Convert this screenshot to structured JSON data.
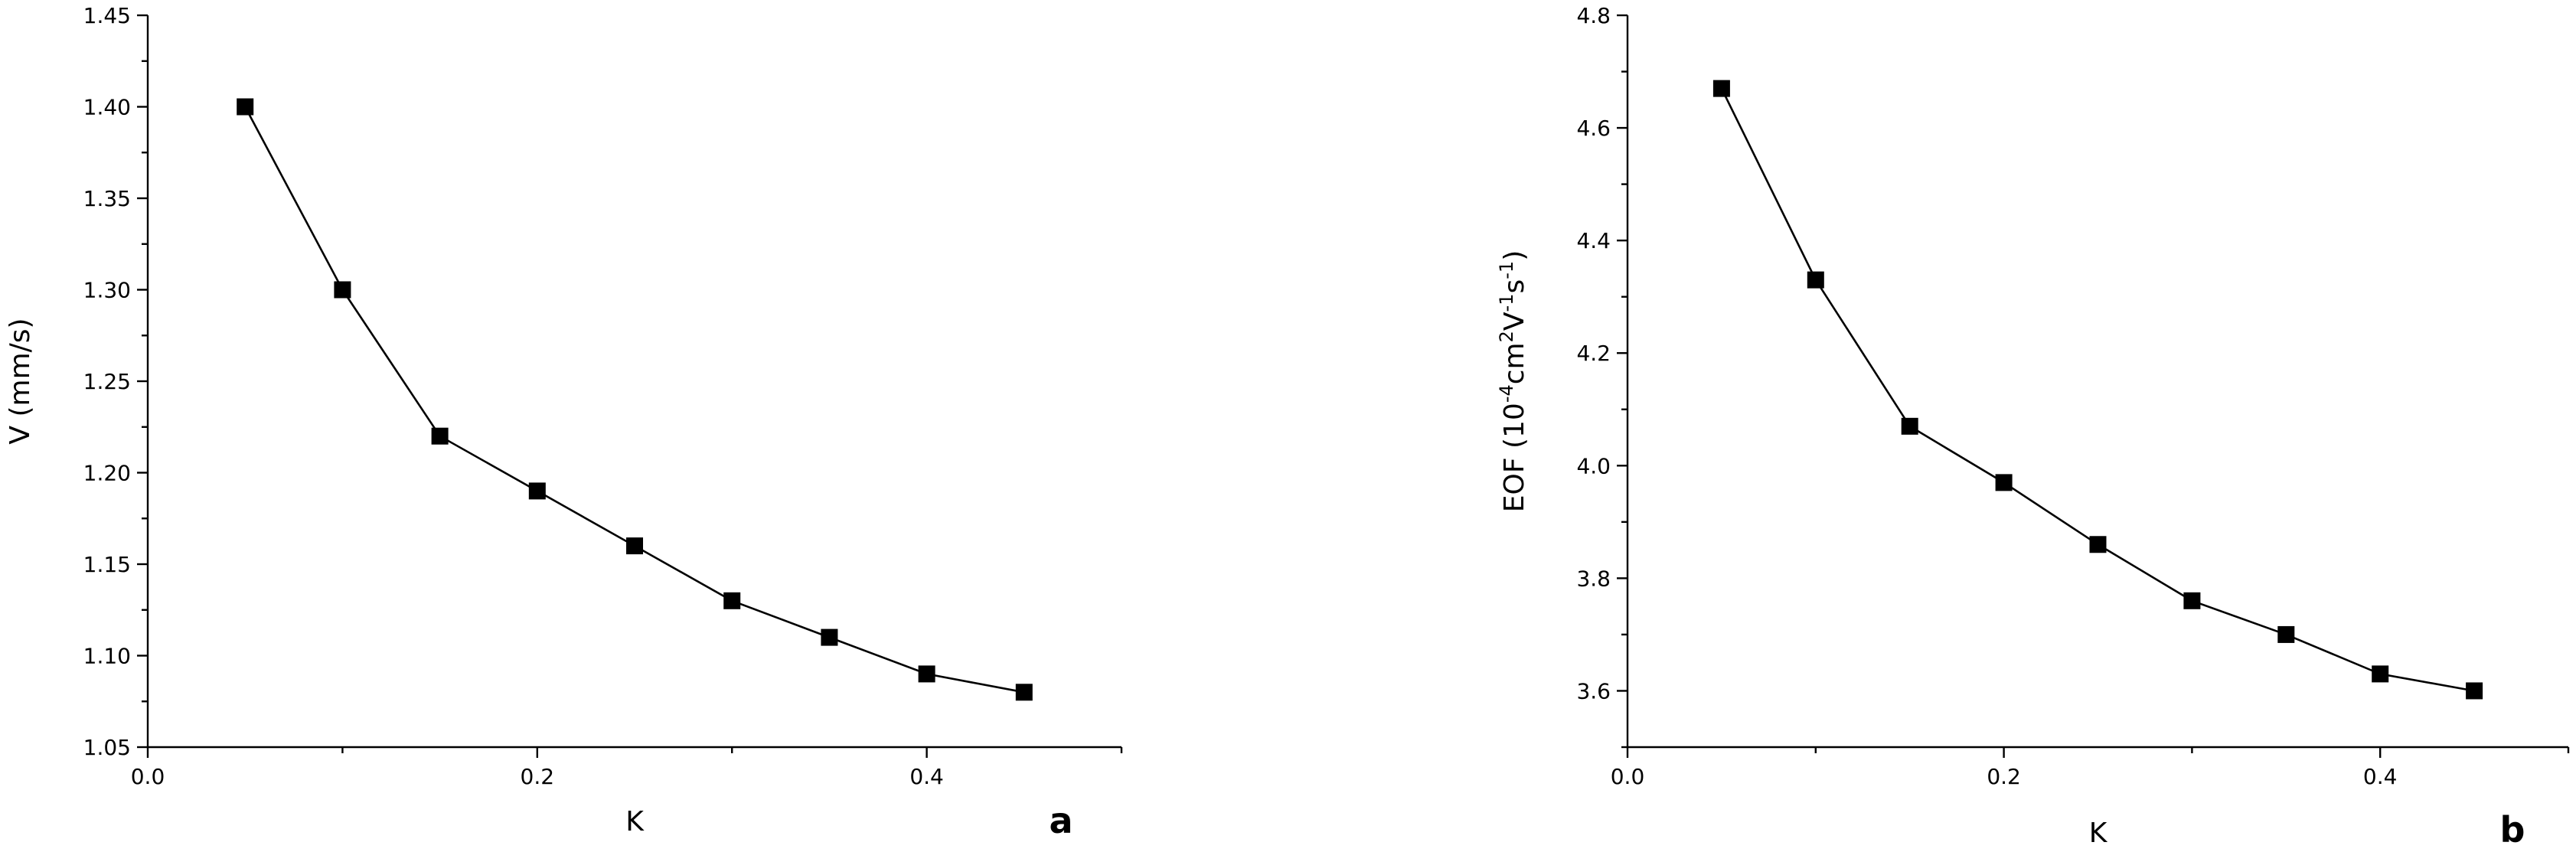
{
  "chart_data": [
    {
      "type": "line",
      "panel": "a",
      "xlabel": "K",
      "ylabel": "V (mm/s)",
      "xlim": [
        0.0,
        0.5
      ],
      "ylim": [
        1.05,
        1.45
      ],
      "xticks": [
        0.0,
        0.2,
        0.4
      ],
      "xtick_labels": [
        "0.0",
        "0.2",
        "0.4"
      ],
      "yticks": [
        1.05,
        1.1,
        1.15,
        1.2,
        1.25,
        1.3,
        1.35,
        1.4,
        1.45
      ],
      "ytick_labels": [
        "1.05",
        "1.10",
        "1.15",
        "1.20",
        "1.25",
        "1.30",
        "1.35",
        "1.40",
        "1.45"
      ],
      "grid": false,
      "x": [
        0.05,
        0.1,
        0.15,
        0.2,
        0.25,
        0.3,
        0.35,
        0.4,
        0.45
      ],
      "y": [
        1.4,
        1.3,
        1.22,
        1.19,
        1.16,
        1.13,
        1.11,
        1.09,
        1.08
      ]
    },
    {
      "type": "line",
      "panel": "b",
      "xlabel": "K",
      "ylabel": "EOF (10⁻⁴cm²V⁻¹s⁻¹)",
      "ylabel_parts": [
        "EOF (10",
        "-4",
        "cm",
        "2",
        "V",
        "-1",
        "s",
        "-1",
        ")"
      ],
      "xlim": [
        0.0,
        0.5
      ],
      "ylim": [
        3.5,
        4.8
      ],
      "xticks": [
        0.0,
        0.2,
        0.4
      ],
      "xtick_labels": [
        "0.0",
        "0.2",
        "0.4"
      ],
      "yticks": [
        3.6,
        3.8,
        4.0,
        4.2,
        4.4,
        4.6,
        4.8
      ],
      "ytick_labels": [
        "3.6",
        "3.8",
        "4.0",
        "4.2",
        "4.4",
        "4.6",
        "4.8"
      ],
      "grid": false,
      "x": [
        0.05,
        0.1,
        0.15,
        0.2,
        0.25,
        0.3,
        0.35,
        0.4,
        0.45
      ],
      "y": [
        4.67,
        4.33,
        4.07,
        3.97,
        3.86,
        3.76,
        3.7,
        3.63,
        3.6
      ]
    }
  ]
}
